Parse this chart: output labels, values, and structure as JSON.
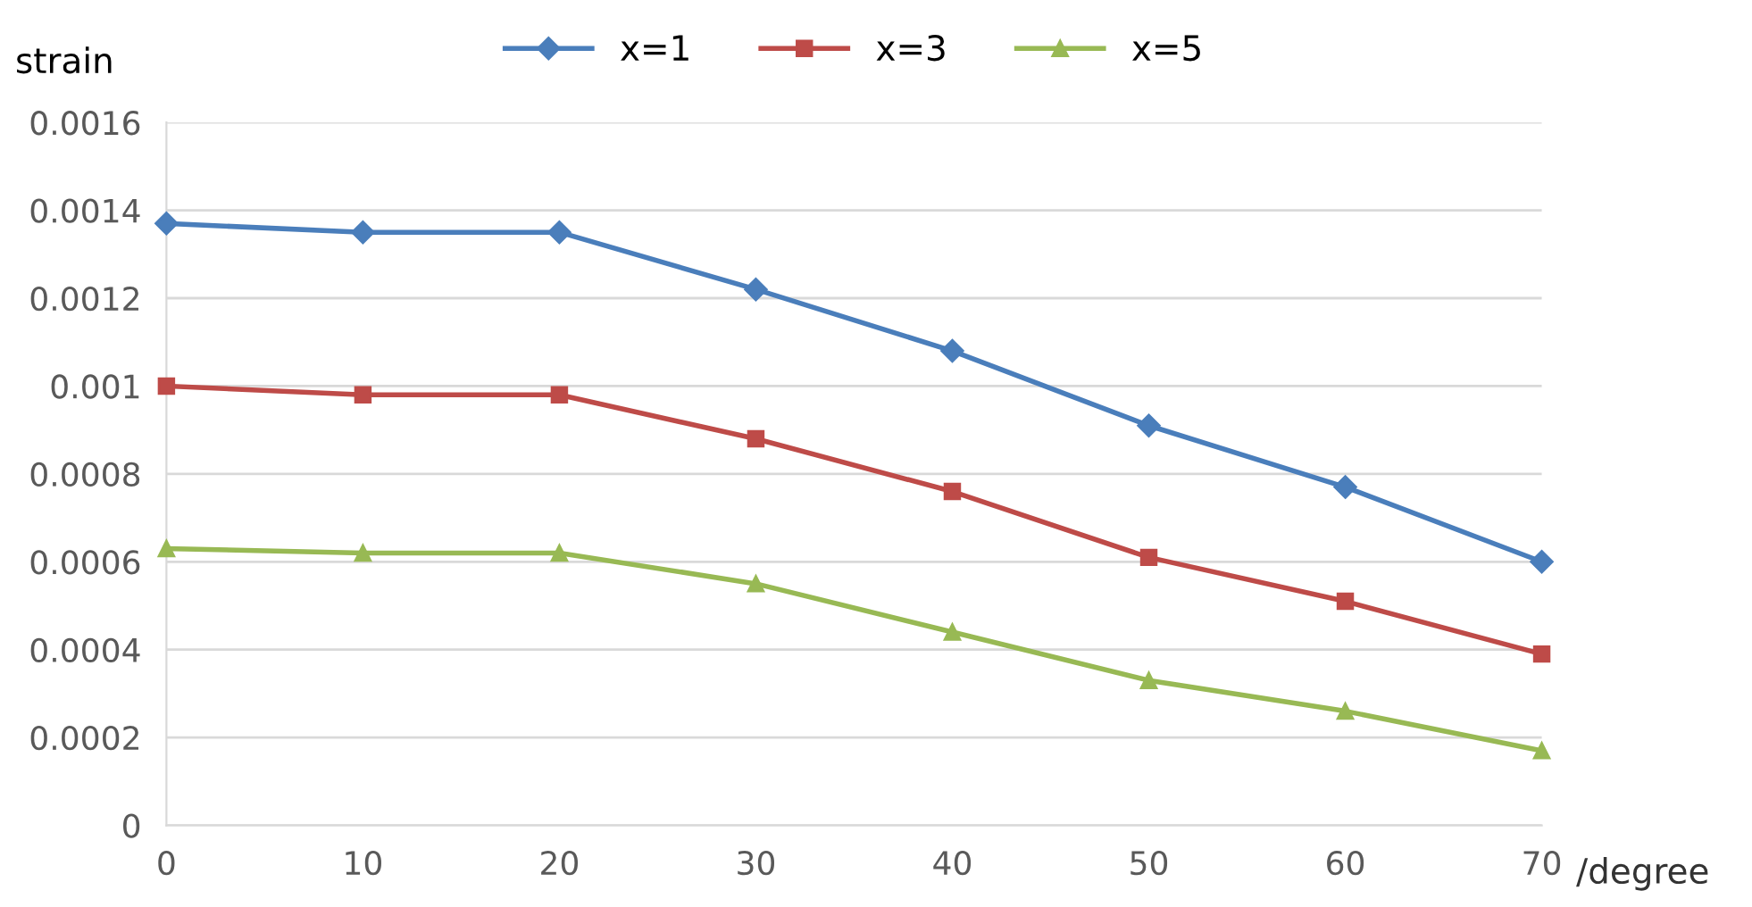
{
  "chart_data": {
    "type": "line",
    "ylabel": "strain",
    "xlabel": "/degree",
    "x": [
      0,
      10,
      20,
      30,
      40,
      50,
      60,
      70
    ],
    "series": [
      {
        "name": "x=1",
        "color": "#4a7ebb",
        "marker": "diamond",
        "values": [
          0.00137,
          0.00135,
          0.00135,
          0.00122,
          0.00108,
          0.00091,
          0.00077,
          0.0006
        ]
      },
      {
        "name": "x=3",
        "color": "#be4b48",
        "marker": "square",
        "values": [
          0.001,
          0.00098,
          0.00098,
          0.00088,
          0.00076,
          0.00061,
          0.00051,
          0.00039
        ]
      },
      {
        "name": "x=5",
        "color": "#98b954",
        "marker": "triangle",
        "values": [
          0.00063,
          0.00062,
          0.00062,
          0.00055,
          0.00044,
          0.00033,
          0.00026,
          0.00017
        ]
      }
    ],
    "xlim": [
      0,
      70
    ],
    "xticks": [
      0,
      10,
      20,
      30,
      40,
      50,
      60,
      70
    ],
    "ylim": [
      0,
      0.0016
    ],
    "yticks": [
      0,
      0.0002,
      0.0004,
      0.0006,
      0.0008,
      0.001,
      0.0012,
      0.0014,
      0.0016
    ],
    "grid": "y",
    "legend": "top",
    "line_style": "solid"
  }
}
